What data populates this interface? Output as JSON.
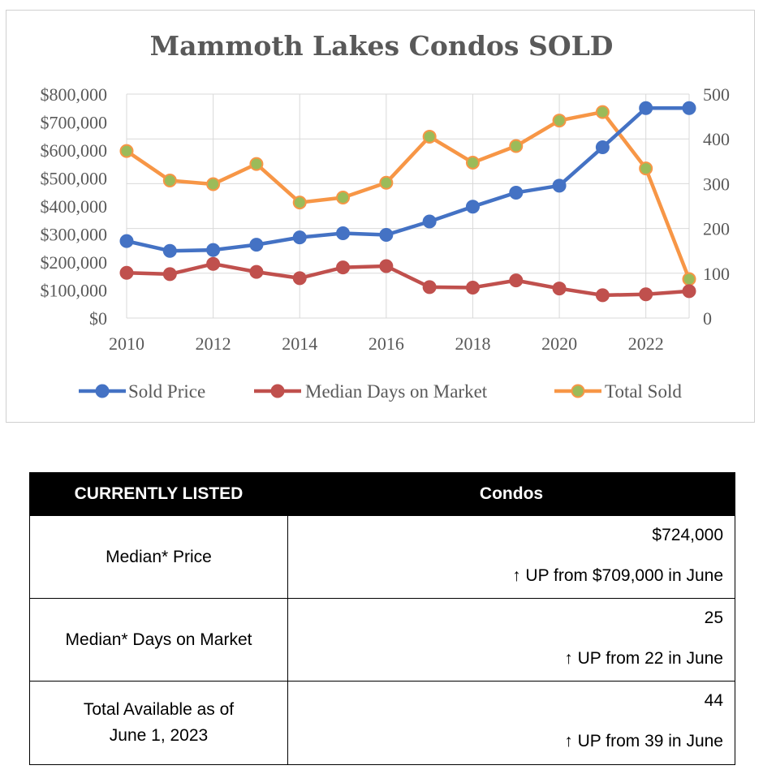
{
  "chart_data": {
    "type": "line",
    "title": "Mammoth Lakes Condos SOLD",
    "x": [
      2010,
      2011,
      2012,
      2013,
      2014,
      2015,
      2016,
      2017,
      2018,
      2019,
      2020,
      2021,
      2022,
      2023
    ],
    "xticks": [
      "2010",
      "2012",
      "2014",
      "2016",
      "2018",
      "2020",
      "2022"
    ],
    "xlim": [
      2010,
      2023
    ],
    "ylim_left": [
      0,
      800000
    ],
    "ylim_right": [
      0,
      500
    ],
    "yticks_left": [
      "$0",
      "$100,000",
      "$200,000",
      "$300,000",
      "$400,000",
      "$500,000",
      "$600,000",
      "$700,000",
      "$800,000"
    ],
    "yticks_right": [
      "0",
      "100",
      "200",
      "300",
      "400",
      "500"
    ],
    "grid": true,
    "legend": "bottom",
    "series": [
      {
        "name": "Sold Price",
        "axis": "left",
        "color": "#4472c4",
        "marker_color": "#4472c4",
        "values": [
          275000,
          240000,
          243000,
          262000,
          288000,
          303000,
          297000,
          345000,
          398000,
          448000,
          473000,
          610000,
          750000,
          750000
        ]
      },
      {
        "name": "Median Days on Market",
        "axis": "right",
        "color": "#c0504d",
        "marker_color": "#c0504d",
        "values": [
          101,
          98,
          121,
          103,
          89,
          113,
          116,
          69,
          68,
          84,
          66,
          51,
          53,
          60
        ]
      },
      {
        "name": "Total Sold",
        "axis": "right",
        "color": "#f79646",
        "marker_color": "#9bbb59",
        "values": [
          373,
          307,
          299,
          344,
          258,
          269,
          302,
          405,
          347,
          384,
          441,
          460,
          334,
          87
        ]
      }
    ]
  },
  "table": {
    "header_left": "CURRENTLY LISTED",
    "header_right": "Condos",
    "rows": [
      {
        "label": "Median* Price",
        "value": "$724,000",
        "change": "↑ UP from $709,000 in June"
      },
      {
        "label": "Median* Days on Market",
        "value": "25",
        "change": "↑ UP from 22 in June"
      },
      {
        "label_line1": "Total Available as of",
        "label_line2": "June 1, 2023",
        "value": "44",
        "change": "↑ UP from 39 in June"
      }
    ]
  }
}
